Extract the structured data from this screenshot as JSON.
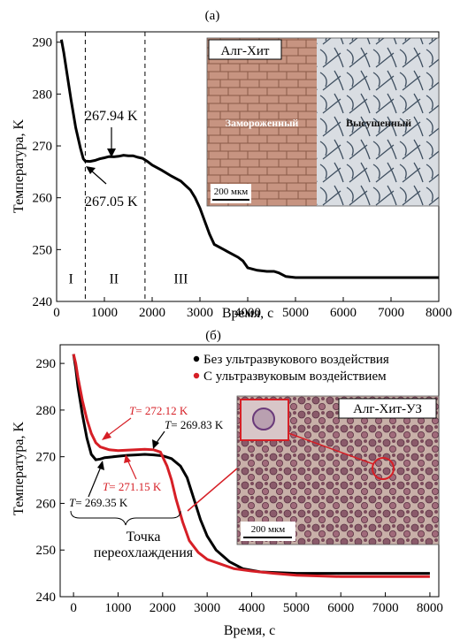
{
  "chart_data": [
    {
      "panel_label": "(а)",
      "type": "line",
      "xlabel": "Время, с",
      "ylabel": "Температура, K",
      "xlim": [
        0,
        8000
      ],
      "ylim": [
        240,
        292
      ],
      "x_ticks": [
        0,
        1000,
        2000,
        3000,
        4000,
        5000,
        6000,
        7000,
        8000
      ],
      "y_ticks": [
        240,
        250,
        260,
        270,
        280,
        290
      ],
      "grid": false,
      "series": [
        {
          "color": "#000000",
          "points": [
            [
              100,
              290.5
            ],
            [
              150,
              288
            ],
            [
              200,
              285
            ],
            [
              300,
              279
            ],
            [
              400,
              273.5
            ],
            [
              500,
              269.5
            ],
            [
              560,
              267.5
            ],
            [
              600,
              267.05
            ],
            [
              700,
              267.0
            ],
            [
              800,
              267.2
            ],
            [
              900,
              267.5
            ],
            [
              1000,
              267.7
            ],
            [
              1100,
              267.94
            ],
            [
              1200,
              267.9
            ],
            [
              1300,
              268.0
            ],
            [
              1400,
              268.2
            ],
            [
              1500,
              268.1
            ],
            [
              1600,
              268.1
            ],
            [
              1700,
              267.8
            ],
            [
              1800,
              267.6
            ],
            [
              1900,
              267.0
            ],
            [
              2000,
              266.3
            ],
            [
              2200,
              265.3
            ],
            [
              2400,
              264.2
            ],
            [
              2600,
              263.2
            ],
            [
              2800,
              261.5
            ],
            [
              2900,
              260.0
            ],
            [
              3000,
              258.0
            ],
            [
              3100,
              255.5
            ],
            [
              3200,
              253.0
            ],
            [
              3300,
              251.0
            ],
            [
              3500,
              250.0
            ],
            [
              3600,
              249.5
            ],
            [
              3700,
              249.0
            ],
            [
              3800,
              248.5
            ],
            [
              3900,
              247.8
            ],
            [
              4000,
              246.5
            ],
            [
              4200,
              246.0
            ],
            [
              4400,
              245.8
            ],
            [
              4550,
              245.8
            ],
            [
              4650,
              245.5
            ],
            [
              4800,
              244.8
            ],
            [
              5000,
              244.6
            ],
            [
              6000,
              244.6
            ],
            [
              8000,
              244.6
            ]
          ]
        }
      ],
      "vlines": [
        600,
        1850
      ],
      "regions": [
        {
          "label": "I",
          "x": 300
        },
        {
          "label": "II",
          "x": 1200
        },
        {
          "label": "III",
          "x": 2600
        }
      ],
      "annotations": [
        {
          "text": "267.94 K",
          "x": 1100,
          "y": 267.94
        },
        {
          "text": "267.05 K",
          "x": 600,
          "y": 267.05
        }
      ],
      "inset": {
        "title": "Алг-Хит",
        "left_label": "Замороженный",
        "right_label": "Высушенный",
        "scale": "200 мкм"
      }
    },
    {
      "panel_label": "(б)",
      "type": "line",
      "xlabel": "Время, с",
      "ylabel": "Температура, K",
      "xlim": [
        -300,
        8200
      ],
      "ylim": [
        240,
        294
      ],
      "x_ticks": [
        0,
        1000,
        2000,
        3000,
        4000,
        5000,
        6000,
        7000,
        8000
      ],
      "y_ticks": [
        240,
        250,
        260,
        270,
        280,
        290
      ],
      "grid": false,
      "legend_position": "top-right",
      "series": [
        {
          "name": "Без ультразвукового воздействия",
          "color": "#000000",
          "points": [
            [
              0,
              292
            ],
            [
              50,
              289
            ],
            [
              100,
              285
            ],
            [
              200,
              279
            ],
            [
              300,
              274
            ],
            [
              400,
              270.5
            ],
            [
              500,
              269.35
            ],
            [
              600,
              269.5
            ],
            [
              700,
              269.8
            ],
            [
              800,
              269.9
            ],
            [
              1000,
              270.1
            ],
            [
              1200,
              270.3
            ],
            [
              1400,
              270.4
            ],
            [
              1600,
              270.5
            ],
            [
              1800,
              270.4
            ],
            [
              2000,
              270.2
            ],
            [
              2200,
              269.6
            ],
            [
              2400,
              268.0
            ],
            [
              2550,
              265.5
            ],
            [
              2700,
              261.0
            ],
            [
              2850,
              256.5
            ],
            [
              3000,
              253.0
            ],
            [
              3200,
              250.0
            ],
            [
              3500,
              247.5
            ],
            [
              3800,
              246.0
            ],
            [
              4200,
              245.3
            ],
            [
              5000,
              245.0
            ],
            [
              6000,
              245.0
            ],
            [
              8000,
              245.0
            ]
          ]
        },
        {
          "name": "С ультразвуковым воздействием",
          "color": "#d61f26",
          "points": [
            [
              0,
              292
            ],
            [
              50,
              290
            ],
            [
              100,
              287
            ],
            [
              200,
              282
            ],
            [
              300,
              278
            ],
            [
              400,
              275
            ],
            [
              500,
              273
            ],
            [
              600,
              272.12
            ],
            [
              700,
              271.8
            ],
            [
              800,
              271.5
            ],
            [
              900,
              271.4
            ],
            [
              1000,
              271.3
            ],
            [
              1200,
              271.4
            ],
            [
              1400,
              271.5
            ],
            [
              1600,
              271.6
            ],
            [
              1800,
              271.5
            ],
            [
              1950,
              271.0
            ],
            [
              2100,
              268.0
            ],
            [
              2200,
              265.0
            ],
            [
              2300,
              261.0
            ],
            [
              2450,
              256.0
            ],
            [
              2600,
              252.0
            ],
            [
              2800,
              249.5
            ],
            [
              3000,
              248.0
            ],
            [
              3300,
              247.0
            ],
            [
              3600,
              246.0
            ],
            [
              4000,
              245.5
            ],
            [
              4500,
              245.0
            ],
            [
              5000,
              244.6
            ],
            [
              6000,
              244.3
            ],
            [
              8000,
              244.3
            ]
          ]
        }
      ],
      "annotations": [
        {
          "text": "= 272.12 K",
          "prefix": "T",
          "series": "С ультразвуковым воздействием"
        },
        {
          "text": "= 269.83 K",
          "prefix": "T",
          "series": "Без ультразвукового воздействия"
        },
        {
          "text": "= 271.15 K",
          "prefix": "T",
          "series": "С ультразвуковым воздействием"
        },
        {
          "text": "= 269.35 K",
          "prefix": "T",
          "series": "Без ультразвукового воздействия"
        }
      ],
      "bracket_label_line1": "Точка",
      "bracket_label_line2": "переохлаждения",
      "inset": {
        "title": "Алг-Хит-УЗ",
        "scale": "200 мкм"
      }
    }
  ]
}
